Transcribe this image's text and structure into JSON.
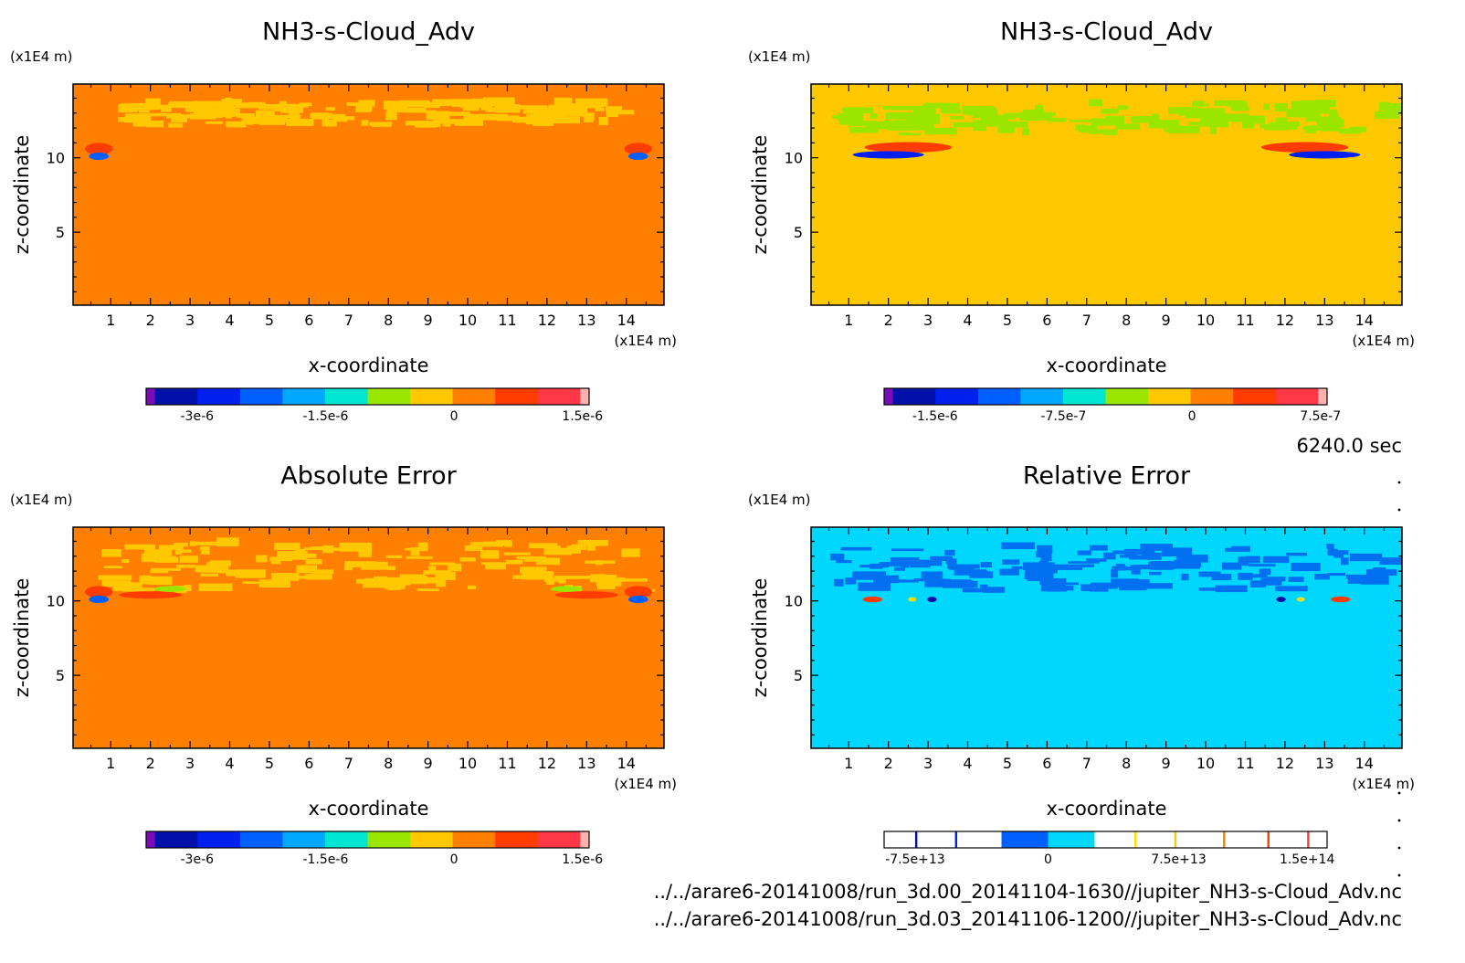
{
  "time_label": "6240.0 sec",
  "files": [
    "../../arare6-20141008/run_3d.00_20141104-1630//jupiter_NH3-s-Cloud_Adv.nc",
    "../../arare6-20141008/run_3d.03_20141106-1200//jupiter_NH3-s-Cloud_Adv.nc"
  ],
  "chart_data": [
    {
      "type": "heatmap",
      "title": "NH3-s-Cloud_Adv",
      "xlabel": "x-coordinate",
      "ylabel": "z-coordinate",
      "x_unit": "(x1E4 m)",
      "z_unit": "(x1E4 m)",
      "xlim": [
        0.05,
        14.95
      ],
      "zlim": [
        0.1,
        14.95
      ],
      "x_ticks": [
        "1",
        "2",
        "3",
        "4",
        "5",
        "6",
        "7",
        "8",
        "9",
        "10",
        "11",
        "12",
        "13",
        "14"
      ],
      "z_ticks": [
        "5",
        "10"
      ],
      "background": "#ff8000",
      "colorbar": {
        "colors": [
          "#7b0ab8",
          "#0010a8",
          "#0020f0",
          "#0060ff",
          "#00a8ff",
          "#00e6d2",
          "#9be600",
          "#ffc800",
          "#ff8000",
          "#ff3c00",
          "#ff3848",
          "#ffb0b0"
        ],
        "tick_labels": [
          "-3e-6",
          "-1.5e-6",
          "0",
          "1.5e-6"
        ]
      },
      "features": [
        {
          "kind": "patches",
          "color": "#ffc800",
          "region": [
            1.0,
            12.0,
            14.0,
            13.5
          ]
        },
        {
          "kind": "blob",
          "color": "#ff3c00",
          "x": 0.7,
          "z": 10.6,
          "rx": 0.35,
          "rz": 0.4
        },
        {
          "kind": "blob",
          "color": "#0060ff",
          "x": 0.7,
          "z": 10.1,
          "rx": 0.25,
          "rz": 0.25
        },
        {
          "kind": "blob",
          "color": "#ff3c00",
          "x": 14.3,
          "z": 10.6,
          "rx": 0.35,
          "rz": 0.4
        },
        {
          "kind": "blob",
          "color": "#0060ff",
          "x": 14.3,
          "z": 10.1,
          "rx": 0.25,
          "rz": 0.25
        }
      ]
    },
    {
      "type": "heatmap",
      "title": "NH3-s-Cloud_Adv",
      "xlabel": "x-coordinate",
      "ylabel": "z-coordinate",
      "x_unit": "(x1E4 m)",
      "z_unit": "(x1E4 m)",
      "xlim": [
        0.05,
        14.95
      ],
      "zlim": [
        0.1,
        14.95
      ],
      "x_ticks": [
        "1",
        "2",
        "3",
        "4",
        "5",
        "6",
        "7",
        "8",
        "9",
        "10",
        "11",
        "12",
        "13",
        "14"
      ],
      "z_ticks": [
        "5",
        "10"
      ],
      "background": "#ffc800",
      "colorbar": {
        "colors": [
          "#7b0ab8",
          "#0010a8",
          "#0020f0",
          "#0060ff",
          "#00a8ff",
          "#00e6d2",
          "#9be600",
          "#ffc800",
          "#ff8000",
          "#ff3c00",
          "#ff3848",
          "#ffb0b0"
        ],
        "tick_labels": [
          "-1.5e-6",
          "-7.5e-7",
          "0",
          "7.5e-7"
        ]
      },
      "features": [
        {
          "kind": "patches",
          "color": "#9be600",
          "region": [
            0.5,
            11.5,
            14.5,
            13.5
          ]
        },
        {
          "kind": "blob",
          "color": "#ff3c00",
          "x": 2.5,
          "z": 10.7,
          "rx": 1.1,
          "rz": 0.35
        },
        {
          "kind": "blob",
          "color": "#0020f0",
          "x": 2.0,
          "z": 10.2,
          "rx": 0.9,
          "rz": 0.25
        },
        {
          "kind": "blob",
          "color": "#ff3c00",
          "x": 12.5,
          "z": 10.7,
          "rx": 1.1,
          "rz": 0.35
        },
        {
          "kind": "blob",
          "color": "#0020f0",
          "x": 13.0,
          "z": 10.2,
          "rx": 0.9,
          "rz": 0.25
        }
      ]
    },
    {
      "type": "heatmap",
      "title": "Absolute Error",
      "xlabel": "x-coordinate",
      "ylabel": "z-coordinate",
      "x_unit": "(x1E4 m)",
      "z_unit": "(x1E4 m)",
      "xlim": [
        0.05,
        14.95
      ],
      "zlim": [
        0.1,
        14.95
      ],
      "x_ticks": [
        "1",
        "2",
        "3",
        "4",
        "5",
        "6",
        "7",
        "8",
        "9",
        "10",
        "11",
        "12",
        "13",
        "14"
      ],
      "z_ticks": [
        "5",
        "10"
      ],
      "background": "#ff8000",
      "colorbar": {
        "colors": [
          "#7b0ab8",
          "#0010a8",
          "#0020f0",
          "#0060ff",
          "#00a8ff",
          "#00e6d2",
          "#9be600",
          "#ffc800",
          "#ff8000",
          "#ff3c00",
          "#ff3848",
          "#ffb0b0"
        ],
        "tick_labels": [
          "-3e-6",
          "-1.5e-6",
          "0",
          "1.5e-6"
        ]
      },
      "features": [
        {
          "kind": "patches",
          "color": "#ffc800",
          "region": [
            0.5,
            10.5,
            14.5,
            13.8
          ]
        },
        {
          "kind": "blob",
          "color": "#ff3c00",
          "x": 0.7,
          "z": 10.6,
          "rx": 0.35,
          "rz": 0.4
        },
        {
          "kind": "blob",
          "color": "#0060ff",
          "x": 0.7,
          "z": 10.1,
          "rx": 0.25,
          "rz": 0.25
        },
        {
          "kind": "blob",
          "color": "#ff3c00",
          "x": 2.0,
          "z": 10.4,
          "rx": 0.8,
          "rz": 0.25
        },
        {
          "kind": "blob",
          "color": "#9be600",
          "x": 2.5,
          "z": 10.8,
          "rx": 0.4,
          "rz": 0.2
        },
        {
          "kind": "blob",
          "color": "#ff3c00",
          "x": 14.3,
          "z": 10.6,
          "rx": 0.35,
          "rz": 0.4
        },
        {
          "kind": "blob",
          "color": "#0060ff",
          "x": 14.3,
          "z": 10.1,
          "rx": 0.25,
          "rz": 0.25
        },
        {
          "kind": "blob",
          "color": "#ff3c00",
          "x": 13.0,
          "z": 10.4,
          "rx": 0.8,
          "rz": 0.25
        },
        {
          "kind": "blob",
          "color": "#9be600",
          "x": 12.5,
          "z": 10.8,
          "rx": 0.4,
          "rz": 0.2
        }
      ]
    },
    {
      "type": "heatmap",
      "title": "Relative Error",
      "xlabel": "x-coordinate",
      "ylabel": "z-coordinate",
      "x_unit": "(x1E4 m)",
      "z_unit": "(x1E4 m)",
      "xlim": [
        0.05,
        14.95
      ],
      "zlim": [
        0.1,
        14.95
      ],
      "x_ticks": [
        "1",
        "2",
        "3",
        "4",
        "5",
        "6",
        "7",
        "8",
        "9",
        "10",
        "11",
        "12",
        "13",
        "14"
      ],
      "z_ticks": [
        "5",
        "10"
      ],
      "background": "#00d7ff",
      "colorbar": {
        "colors": [
          "#ffffff",
          "#0010a8",
          "#ffffff",
          "#0020f0",
          "#ffffff",
          "#0060ff",
          "#00d7ff",
          "#ffe000",
          "#ffc800",
          "#ff8000",
          "#ff3c00",
          "#ff3848"
        ],
        "segments": [
          {
            "from": 0.0,
            "to": 0.07,
            "color": "#ffffff"
          },
          {
            "from": 0.07,
            "to": 0.075,
            "color": "#0010a8"
          },
          {
            "from": 0.075,
            "to": 0.16,
            "color": "#ffffff"
          },
          {
            "from": 0.16,
            "to": 0.165,
            "color": "#0020f0"
          },
          {
            "from": 0.165,
            "to": 0.265,
            "color": "#ffffff"
          },
          {
            "from": 0.265,
            "to": 0.37,
            "color": "#0060ff"
          },
          {
            "from": 0.37,
            "to": 0.475,
            "color": "#00d7ff"
          },
          {
            "from": 0.475,
            "to": 0.565,
            "color": "#ffffff"
          },
          {
            "from": 0.565,
            "to": 0.57,
            "color": "#ffe000"
          },
          {
            "from": 0.57,
            "to": 0.655,
            "color": "#ffffff"
          },
          {
            "from": 0.655,
            "to": 0.66,
            "color": "#ffc800"
          },
          {
            "from": 0.66,
            "to": 0.765,
            "color": "#ffffff"
          },
          {
            "from": 0.765,
            "to": 0.77,
            "color": "#ff8000"
          },
          {
            "from": 0.77,
            "to": 0.865,
            "color": "#ffffff"
          },
          {
            "from": 0.865,
            "to": 0.87,
            "color": "#ff3c00"
          },
          {
            "from": 0.87,
            "to": 0.955,
            "color": "#ffffff"
          },
          {
            "from": 0.955,
            "to": 0.96,
            "color": "#ff3848"
          },
          {
            "from": 0.96,
            "to": 1.0,
            "color": "#ffffff"
          }
        ],
        "tick_labels": [
          "-7.5e+13",
          "0",
          "7.5e+13",
          "1.5e+14"
        ]
      },
      "features": [
        {
          "kind": "patches",
          "color": "#0070f0",
          "region": [
            0.5,
            10.5,
            14.5,
            13.5
          ]
        },
        {
          "kind": "blob",
          "color": "#ff3c00",
          "x": 1.6,
          "z": 10.1,
          "rx": 0.25,
          "rz": 0.2
        },
        {
          "kind": "blob",
          "color": "#ffe000",
          "x": 2.6,
          "z": 10.1,
          "rx": 0.1,
          "rz": 0.15
        },
        {
          "kind": "blob",
          "color": "#0010a8",
          "x": 3.1,
          "z": 10.1,
          "rx": 0.12,
          "rz": 0.18
        },
        {
          "kind": "blob",
          "color": "#0010a8",
          "x": 11.9,
          "z": 10.1,
          "rx": 0.12,
          "rz": 0.18
        },
        {
          "kind": "blob",
          "color": "#ffe000",
          "x": 12.4,
          "z": 10.1,
          "rx": 0.1,
          "rz": 0.15
        },
        {
          "kind": "blob",
          "color": "#ff3c00",
          "x": 13.4,
          "z": 10.1,
          "rx": 0.25,
          "rz": 0.2
        }
      ]
    }
  ]
}
